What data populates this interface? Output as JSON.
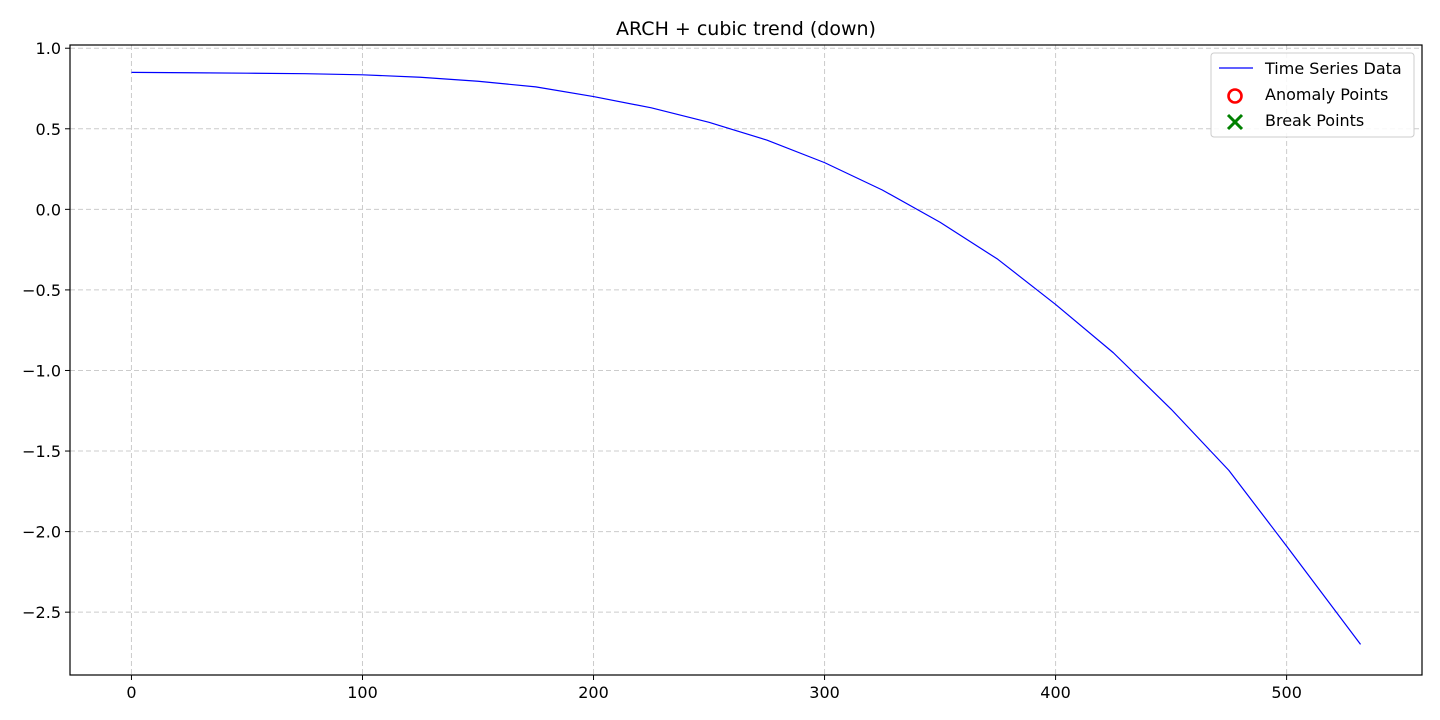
{
  "chart_data": {
    "type": "line",
    "title": "ARCH + cubic trend (down)",
    "xlabel": "",
    "ylabel": "",
    "xlim": [
      -26.6,
      558.6
    ],
    "ylim": [
      -2.89,
      1.02
    ],
    "grid": true,
    "legend_position": "top-right",
    "x_ticks": [
      0,
      100,
      200,
      300,
      400,
      500
    ],
    "x_tick_labels": [
      "0",
      "100",
      "200",
      "300",
      "400",
      "500"
    ],
    "y_ticks": [
      1.0,
      0.5,
      0.0,
      -0.5,
      -1.0,
      -1.5,
      -2.0,
      -2.5
    ],
    "y_tick_labels": [
      "1.0",
      "0.5",
      "0.0",
      "−0.5",
      "−1.0",
      "−1.5",
      "−2.0",
      "−2.5"
    ],
    "series": [
      {
        "name": "Time Series Data",
        "kind": "line",
        "color": "#0000ff",
        "x": [
          0,
          25,
          50,
          75,
          100,
          125,
          150,
          175,
          200,
          225,
          250,
          275,
          300,
          325,
          350,
          375,
          400,
          425,
          450,
          475,
          500,
          532
        ],
        "y": [
          0.85,
          0.848,
          0.845,
          0.842,
          0.835,
          0.82,
          0.795,
          0.76,
          0.7,
          0.63,
          0.54,
          0.43,
          0.29,
          0.12,
          -0.08,
          -0.31,
          -0.59,
          -0.89,
          -1.24,
          -1.62,
          -2.09,
          -2.7
        ]
      },
      {
        "name": "Anomaly Points",
        "kind": "scatter",
        "marker": "circle-open",
        "color": "#ff0000",
        "x": [],
        "y": []
      },
      {
        "name": "Break Points",
        "kind": "scatter",
        "marker": "x",
        "color": "#008000",
        "x": [],
        "y": []
      }
    ]
  }
}
